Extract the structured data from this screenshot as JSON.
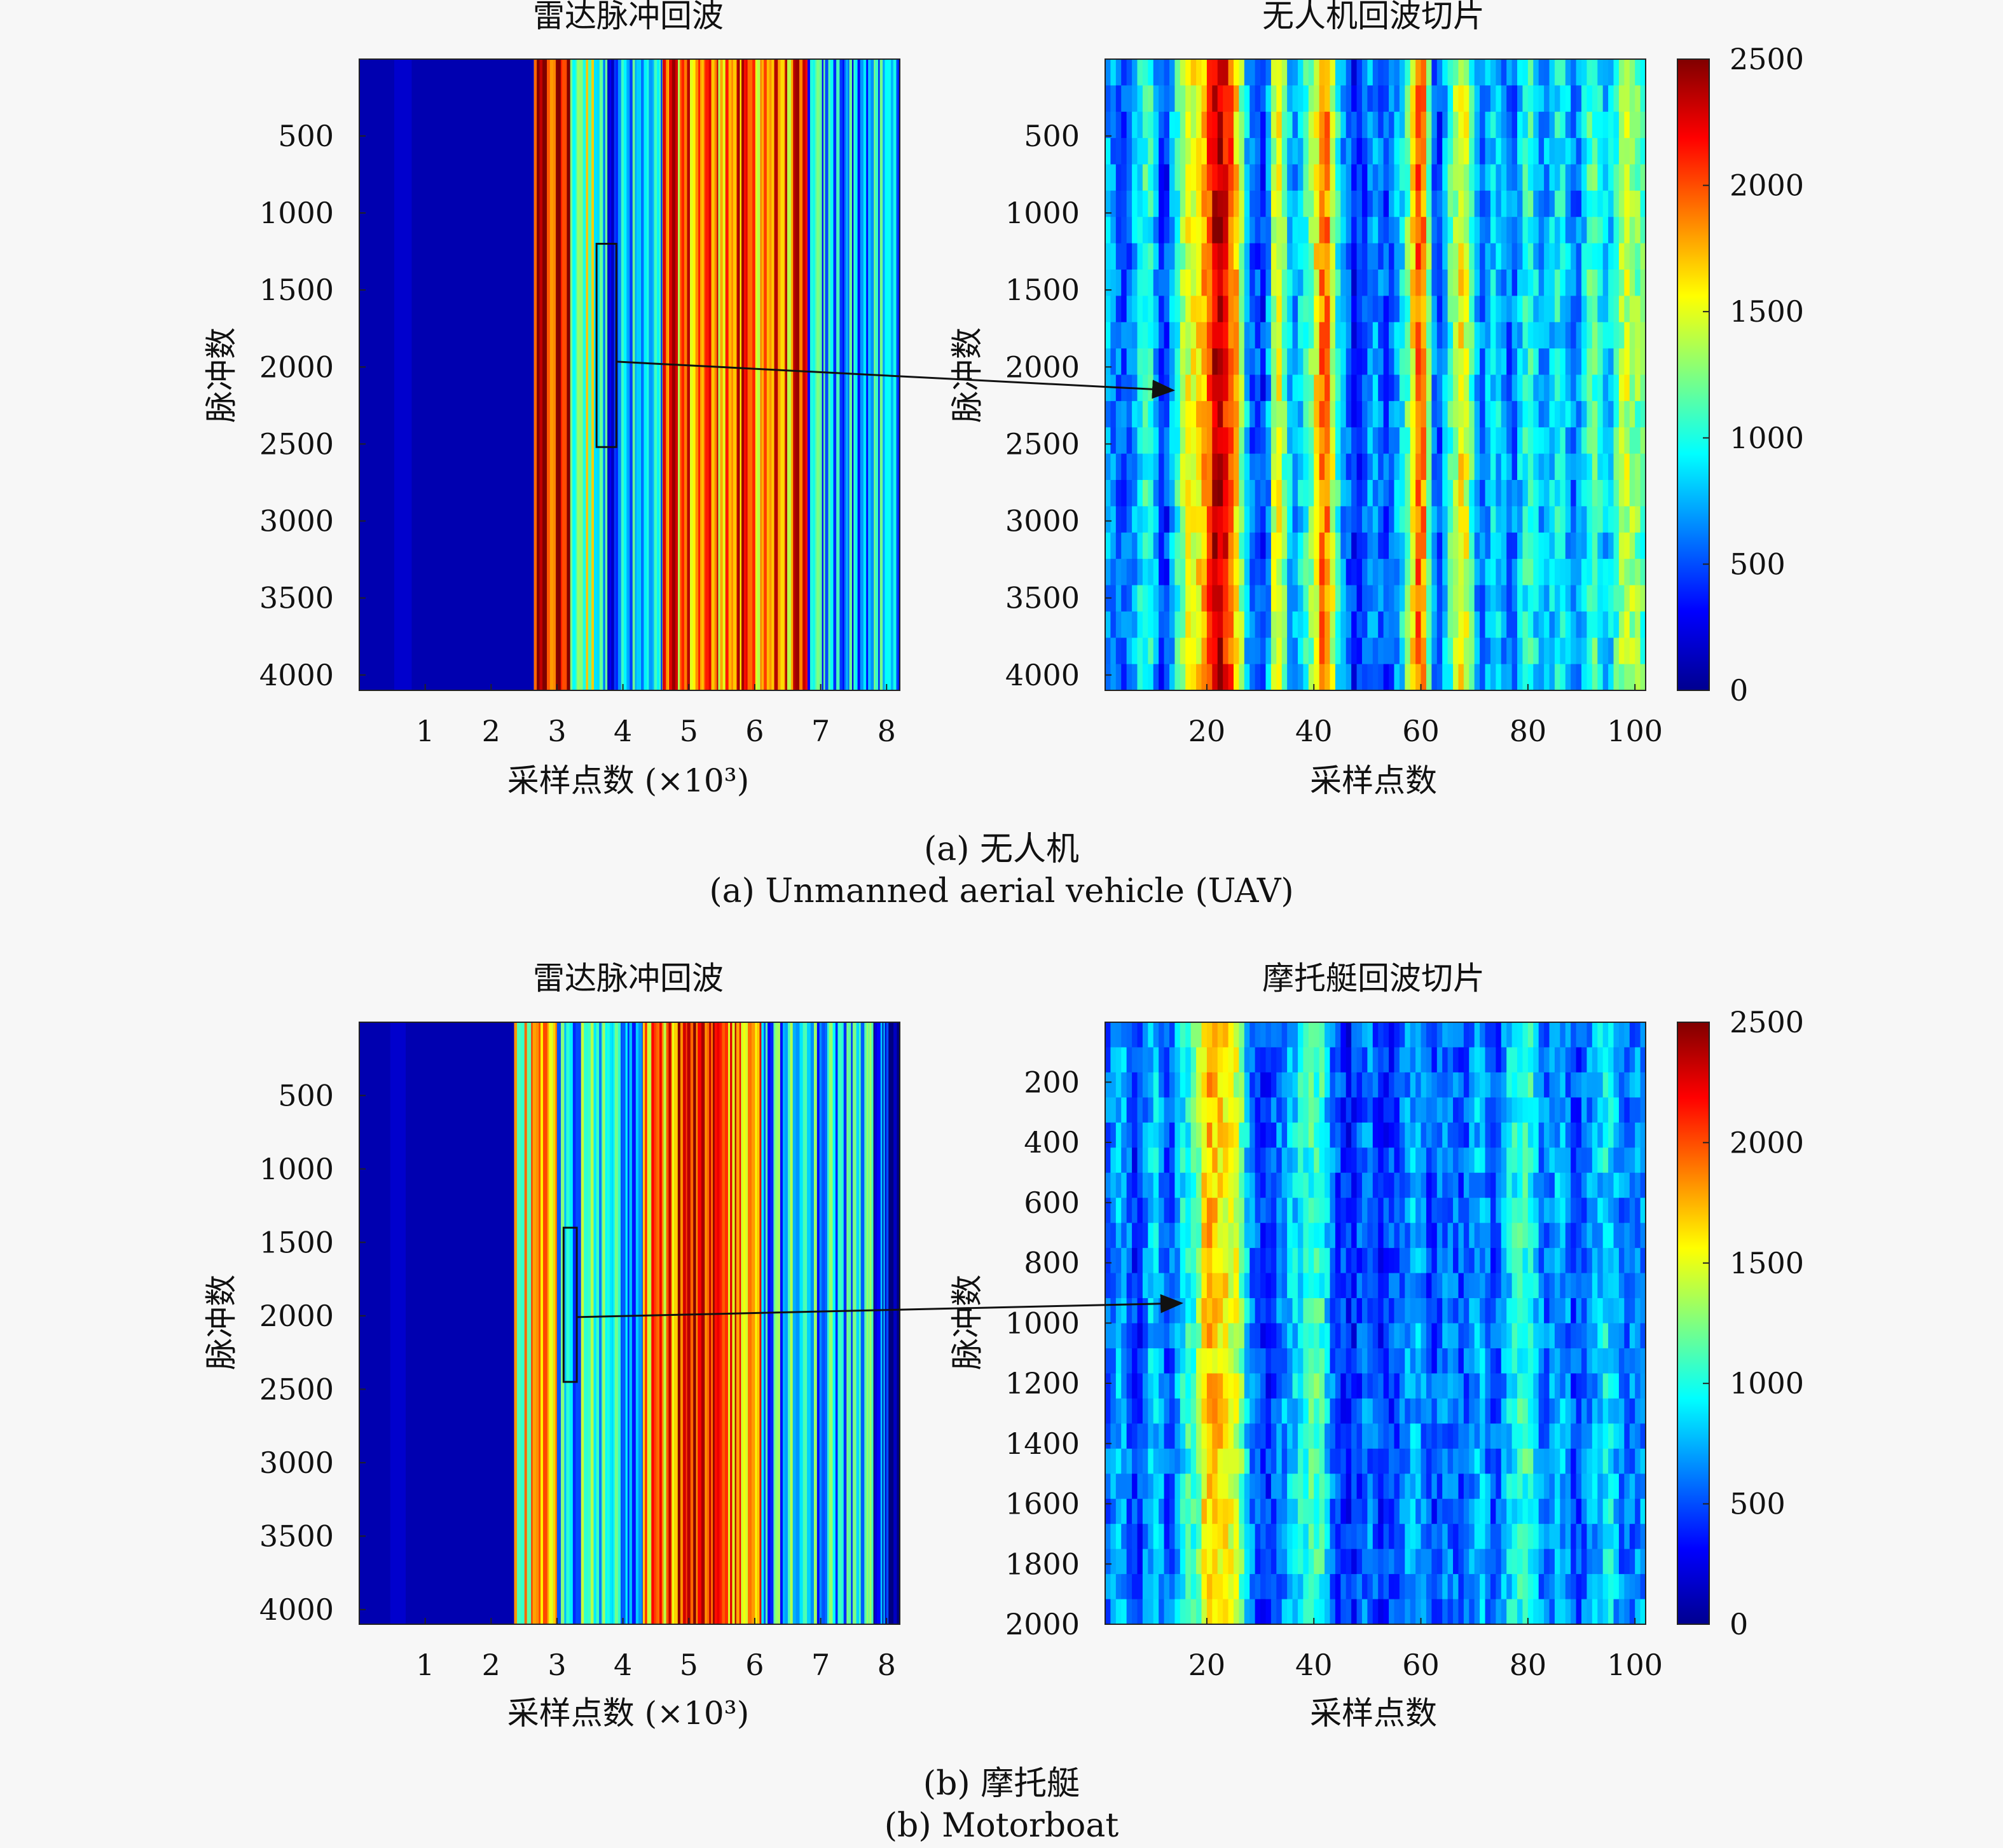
{
  "colormap": {
    "name": "jet",
    "min": 0,
    "max": 2500,
    "ticks": [
      0,
      500,
      1000,
      1500,
      2000,
      2500
    ]
  },
  "captions": {
    "a_cn": "(a) 无人机",
    "a_en": "(a) Unmanned aerial vehicle (UAV)",
    "b_cn": "(b) 摩托艇",
    "b_en": "(b) Motorboat"
  },
  "chart_data": [
    {
      "type": "heatmap",
      "id": "a-full",
      "title": "雷达脉冲回波",
      "xlabel": "采样点数 (×10³)",
      "ylabel": "脉冲数",
      "xlim": [
        0,
        8.2
      ],
      "ylim": [
        1,
        4100
      ],
      "xticks": [
        1,
        2,
        3,
        4,
        5,
        6,
        7,
        8
      ],
      "yticks": [
        500,
        1000,
        1500,
        2000,
        2500,
        3000,
        3500,
        4000
      ],
      "columns": [
        {
          "x": [
            0,
            2.65
          ],
          "value": 120
        },
        {
          "x": [
            2.65,
            3.2
          ],
          "value": 2150
        },
        {
          "x": [
            3.2,
            3.7
          ],
          "value": 1300
        },
        {
          "x": [
            3.7,
            4.6
          ],
          "value": 700
        },
        {
          "x": [
            4.6,
            6.8
          ],
          "value": 1900
        },
        {
          "x": [
            6.8,
            8.2
          ],
          "value": 750
        }
      ],
      "highlight": {
        "x": [
          3.6,
          3.9
        ],
        "y": [
          1200,
          2520
        ]
      }
    },
    {
      "type": "heatmap",
      "id": "a-slice",
      "title": "无人机回波切片",
      "xlabel": "采样点数",
      "ylabel": "脉冲数",
      "xlim": [
        1,
        102
      ],
      "ylim": [
        1,
        4100
      ],
      "xticks": [
        20,
        40,
        60,
        80,
        100
      ],
      "yticks": [
        500,
        1000,
        1500,
        2000,
        2500,
        3000,
        3500,
        4000
      ],
      "profile": [
        {
          "x": 1,
          "value": 750
        },
        {
          "x": 5,
          "value": 500
        },
        {
          "x": 9,
          "value": 1150
        },
        {
          "x": 12,
          "value": 300
        },
        {
          "x": 16,
          "value": 1450
        },
        {
          "x": 19,
          "value": 1650
        },
        {
          "x": 22,
          "value": 2450
        },
        {
          "x": 25,
          "value": 1900
        },
        {
          "x": 28,
          "value": 600
        },
        {
          "x": 31,
          "value": 400
        },
        {
          "x": 33,
          "value": 1700
        },
        {
          "x": 36,
          "value": 650
        },
        {
          "x": 39,
          "value": 1100
        },
        {
          "x": 42,
          "value": 2050
        },
        {
          "x": 45,
          "value": 800
        },
        {
          "x": 48,
          "value": 300
        },
        {
          "x": 51,
          "value": 750
        },
        {
          "x": 54,
          "value": 450
        },
        {
          "x": 57,
          "value": 1000
        },
        {
          "x": 60,
          "value": 2150
        },
        {
          "x": 63,
          "value": 300
        },
        {
          "x": 66,
          "value": 1250
        },
        {
          "x": 68,
          "value": 1650
        },
        {
          "x": 71,
          "value": 550
        },
        {
          "x": 74,
          "value": 900
        },
        {
          "x": 77,
          "value": 500
        },
        {
          "x": 80,
          "value": 1100
        },
        {
          "x": 83,
          "value": 650
        },
        {
          "x": 86,
          "value": 1000
        },
        {
          "x": 89,
          "value": 500
        },
        {
          "x": 92,
          "value": 1200
        },
        {
          "x": 95,
          "value": 700
        },
        {
          "x": 98,
          "value": 1450
        },
        {
          "x": 102,
          "value": 1100
        }
      ]
    },
    {
      "type": "heatmap",
      "id": "b-full",
      "title": "雷达脉冲回波",
      "xlabel": "采样点数 (×10³)",
      "ylabel": "脉冲数",
      "xlim": [
        0,
        8.2
      ],
      "ylim": [
        1,
        4100
      ],
      "xticks": [
        1,
        2,
        3,
        4,
        5,
        6,
        7,
        8
      ],
      "yticks": [
        500,
        1000,
        1500,
        2000,
        2500,
        3000,
        3500,
        4000
      ],
      "columns": [
        {
          "x": [
            0,
            2.35
          ],
          "value": 120
        },
        {
          "x": [
            2.35,
            3.0
          ],
          "value": 1500
        },
        {
          "x": [
            3.0,
            4.3
          ],
          "value": 900
        },
        {
          "x": [
            4.3,
            6.1
          ],
          "value": 1950
        },
        {
          "x": [
            6.1,
            7.8
          ],
          "value": 850
        },
        {
          "x": [
            7.8,
            8.2
          ],
          "value": 350
        }
      ],
      "highlight": {
        "x": [
          3.1,
          3.3
        ],
        "y": [
          1400,
          2450
        ]
      }
    },
    {
      "type": "heatmap",
      "id": "b-slice",
      "title": "摩托艇回波切片",
      "xlabel": "采样点数",
      "ylabel": "脉冲数",
      "xlim": [
        1,
        102
      ],
      "ylim": [
        1,
        2000
      ],
      "xticks": [
        20,
        40,
        60,
        80,
        100
      ],
      "yticks": [
        200,
        400,
        600,
        800,
        1000,
        1200,
        1400,
        1600,
        1800,
        2000
      ],
      "profile": [
        {
          "x": 1,
          "value": 500
        },
        {
          "x": 4,
          "value": 800
        },
        {
          "x": 7,
          "value": 350
        },
        {
          "x": 10,
          "value": 900
        },
        {
          "x": 13,
          "value": 450
        },
        {
          "x": 16,
          "value": 1000
        },
        {
          "x": 18,
          "value": 1100
        },
        {
          "x": 20,
          "value": 1750
        },
        {
          "x": 23,
          "value": 1600
        },
        {
          "x": 26,
          "value": 1400
        },
        {
          "x": 28,
          "value": 650
        },
        {
          "x": 31,
          "value": 400
        },
        {
          "x": 34,
          "value": 650
        },
        {
          "x": 37,
          "value": 900
        },
        {
          "x": 39,
          "value": 1050
        },
        {
          "x": 41,
          "value": 1150
        },
        {
          "x": 44,
          "value": 500
        },
        {
          "x": 47,
          "value": 350
        },
        {
          "x": 50,
          "value": 650
        },
        {
          "x": 53,
          "value": 400
        },
        {
          "x": 56,
          "value": 550
        },
        {
          "x": 59,
          "value": 800
        },
        {
          "x": 62,
          "value": 450
        },
        {
          "x": 65,
          "value": 650
        },
        {
          "x": 68,
          "value": 500
        },
        {
          "x": 71,
          "value": 800
        },
        {
          "x": 74,
          "value": 450
        },
        {
          "x": 77,
          "value": 950
        },
        {
          "x": 80,
          "value": 1100
        },
        {
          "x": 83,
          "value": 550
        },
        {
          "x": 86,
          "value": 800
        },
        {
          "x": 89,
          "value": 450
        },
        {
          "x": 92,
          "value": 700
        },
        {
          "x": 95,
          "value": 950
        },
        {
          "x": 98,
          "value": 550
        },
        {
          "x": 102,
          "value": 700
        }
      ]
    }
  ]
}
